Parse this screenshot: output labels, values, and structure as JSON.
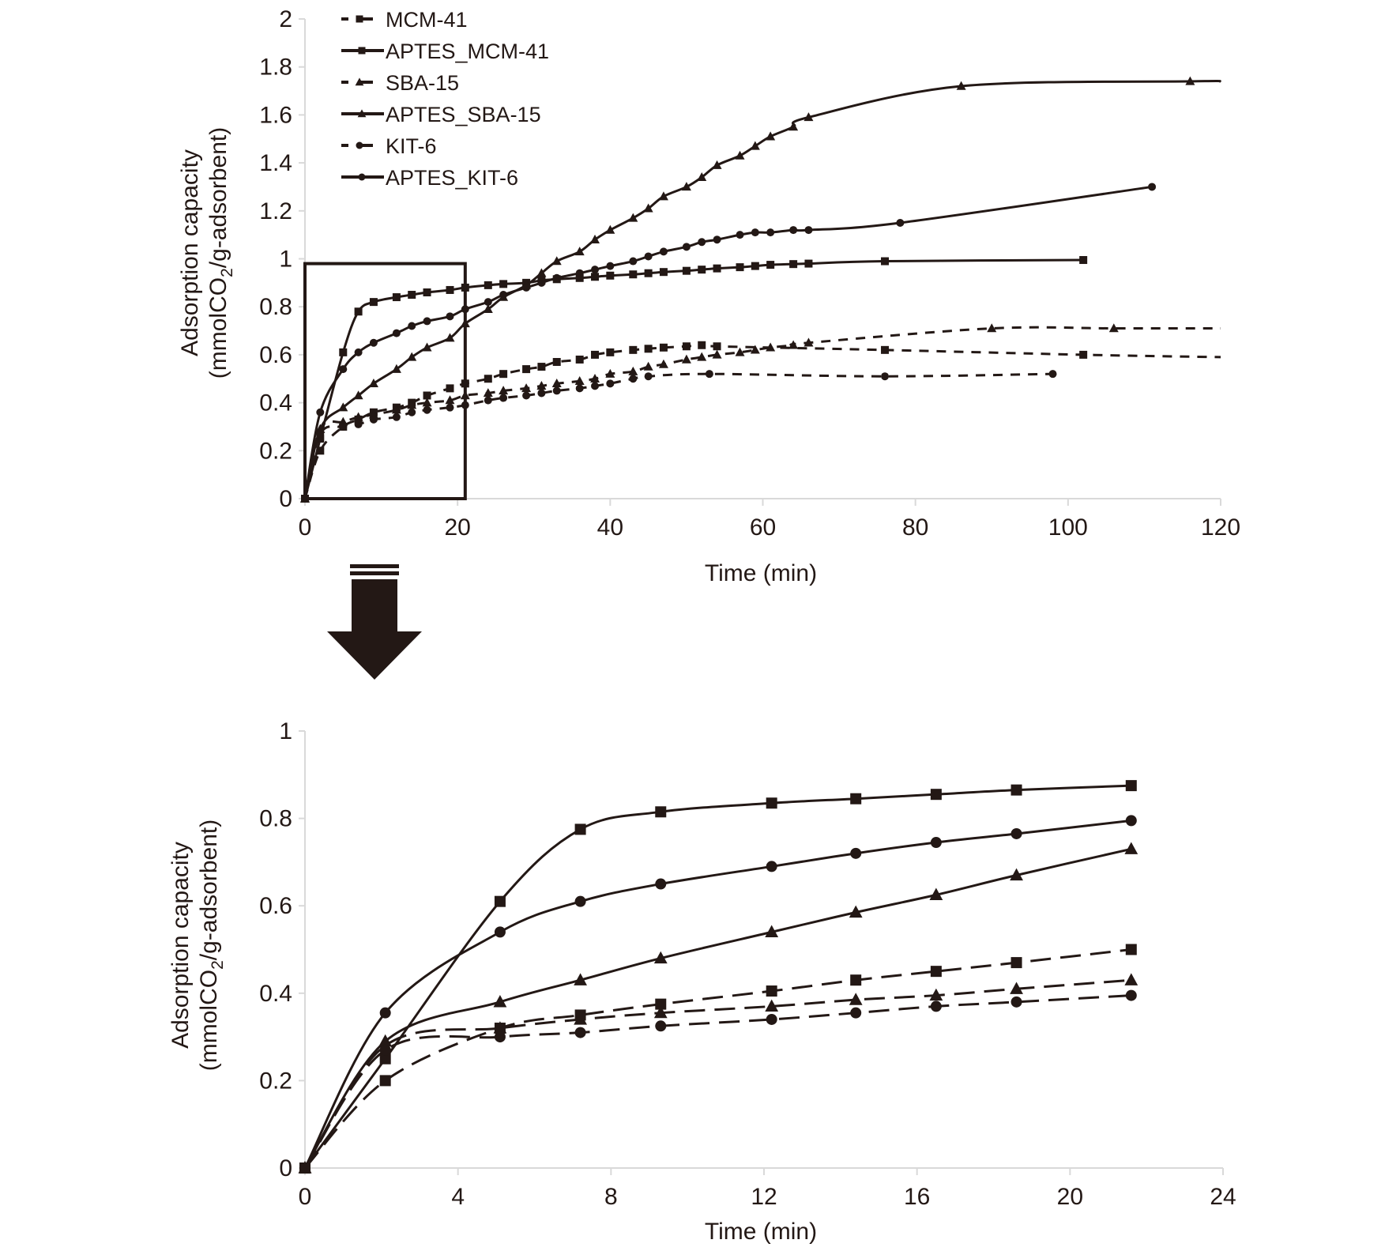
{
  "chart_data": [
    {
      "id": "top",
      "type": "line",
      "title": "",
      "xlabel": "Time (min)",
      "ylabel_line1": "Adsorption capacity",
      "ylabel_line2_prefix": "(mmolCO",
      "ylabel_line2_sub": "2",
      "ylabel_line2_suffix": "/g-adsorbent)",
      "xlim": [
        0,
        120
      ],
      "ylim": [
        0,
        2
      ],
      "xticks": [
        0,
        20,
        40,
        60,
        80,
        100,
        120
      ],
      "yticks": [
        0,
        0.2,
        0.4,
        0.6,
        0.8,
        1,
        1.2,
        1.4,
        1.6,
        1.8,
        2
      ],
      "ytick_labels": [
        "0",
        "0.2",
        "0.4",
        "0.6",
        "0.8",
        "1",
        "1.2",
        "1.4",
        "1.6",
        "1.8",
        "2"
      ],
      "grid": false,
      "legend_position": "top-left",
      "zoom_box": {
        "x": [
          0,
          21
        ],
        "y": [
          0,
          0.98
        ]
      },
      "series": [
        {
          "name": "MCM-41",
          "style": "dashed",
          "marker": "square",
          "x": [
            0,
            2,
            5,
            7,
            9,
            12,
            14,
            16,
            19,
            21,
            24,
            26,
            29,
            31,
            33,
            36,
            38,
            40,
            43,
            45,
            47,
            50,
            52,
            54,
            76,
            102,
            120
          ],
          "y": [
            0,
            0.2,
            0.3,
            0.33,
            0.36,
            0.38,
            0.4,
            0.43,
            0.46,
            0.48,
            0.5,
            0.52,
            0.54,
            0.55,
            0.57,
            0.58,
            0.6,
            0.61,
            0.62,
            0.625,
            0.63,
            0.635,
            0.64,
            0.635,
            0.62,
            0.6,
            0.59
          ],
          "markers_at": [
            0,
            2,
            5,
            7,
            9,
            12,
            14,
            16,
            19,
            21,
            24,
            26,
            29,
            31,
            33,
            36,
            38,
            40,
            43,
            45,
            47,
            50,
            52,
            54,
            76,
            102
          ]
        },
        {
          "name": "APTES_MCM-41",
          "style": "solid",
          "marker": "square",
          "x": [
            0,
            2,
            5,
            7,
            9,
            12,
            14,
            16,
            19,
            21,
            24,
            26,
            29,
            31,
            33,
            36,
            38,
            40,
            43,
            45,
            47,
            50,
            52,
            54,
            57,
            59,
            61,
            64,
            66,
            76,
            102
          ],
          "y": [
            0,
            0.25,
            0.61,
            0.78,
            0.82,
            0.84,
            0.85,
            0.86,
            0.87,
            0.88,
            0.89,
            0.895,
            0.9,
            0.91,
            0.915,
            0.92,
            0.925,
            0.93,
            0.935,
            0.94,
            0.945,
            0.95,
            0.955,
            0.96,
            0.965,
            0.97,
            0.975,
            0.978,
            0.98,
            0.99,
            0.995
          ]
        },
        {
          "name": "SBA-15",
          "style": "dashed",
          "marker": "triangle",
          "x": [
            0,
            2,
            5,
            7,
            9,
            12,
            14,
            16,
            19,
            21,
            24,
            26,
            29,
            31,
            33,
            36,
            38,
            40,
            43,
            45,
            47,
            50,
            52,
            54,
            57,
            59,
            61,
            64,
            66,
            90,
            106,
            120
          ],
          "y": [
            0,
            0.29,
            0.32,
            0.34,
            0.35,
            0.37,
            0.39,
            0.4,
            0.41,
            0.43,
            0.44,
            0.45,
            0.46,
            0.47,
            0.48,
            0.49,
            0.5,
            0.52,
            0.53,
            0.55,
            0.56,
            0.58,
            0.59,
            0.6,
            0.61,
            0.62,
            0.63,
            0.64,
            0.65,
            0.71,
            0.71,
            0.71
          ]
        },
        {
          "name": "APTES_SBA-15",
          "style": "solid",
          "marker": "triangle",
          "x": [
            0,
            2,
            5,
            7,
            9,
            12,
            14,
            16,
            19,
            21,
            24,
            26,
            29,
            31,
            33,
            36,
            38,
            40,
            43,
            45,
            47,
            50,
            52,
            54,
            57,
            59,
            61,
            64,
            66,
            86,
            116,
            120
          ],
          "y": [
            0,
            0.29,
            0.38,
            0.43,
            0.48,
            0.54,
            0.59,
            0.63,
            0.67,
            0.73,
            0.79,
            0.84,
            0.89,
            0.94,
            0.99,
            1.03,
            1.08,
            1.12,
            1.17,
            1.21,
            1.26,
            1.3,
            1.34,
            1.39,
            1.43,
            1.47,
            1.51,
            1.55,
            1.59,
            1.72,
            1.74,
            1.74
          ]
        },
        {
          "name": "KIT-6",
          "style": "dashed",
          "marker": "circle",
          "x": [
            0,
            2,
            5,
            7,
            9,
            12,
            14,
            16,
            19,
            21,
            24,
            26,
            29,
            31,
            33,
            36,
            38,
            40,
            43,
            45,
            53,
            76,
            98
          ],
          "y": [
            0,
            0.27,
            0.3,
            0.31,
            0.33,
            0.34,
            0.36,
            0.37,
            0.38,
            0.39,
            0.41,
            0.42,
            0.43,
            0.44,
            0.45,
            0.46,
            0.47,
            0.48,
            0.5,
            0.51,
            0.52,
            0.51,
            0.52
          ]
        },
        {
          "name": "APTES_KIT-6",
          "style": "solid",
          "marker": "circle",
          "x": [
            0,
            2,
            5,
            7,
            9,
            12,
            14,
            16,
            19,
            21,
            24,
            26,
            29,
            31,
            33,
            36,
            38,
            40,
            43,
            45,
            47,
            50,
            52,
            54,
            57,
            59,
            61,
            64,
            66,
            78,
            111
          ],
          "y": [
            0,
            0.36,
            0.54,
            0.61,
            0.65,
            0.69,
            0.72,
            0.74,
            0.76,
            0.79,
            0.82,
            0.85,
            0.88,
            0.9,
            0.92,
            0.94,
            0.955,
            0.97,
            0.99,
            1.01,
            1.03,
            1.05,
            1.07,
            1.08,
            1.1,
            1.11,
            1.11,
            1.12,
            1.12,
            1.15,
            1.3
          ]
        }
      ]
    },
    {
      "id": "bottom",
      "type": "line",
      "title": "",
      "xlabel": "Time (min)",
      "ylabel_line1": "Adsorption capacity",
      "ylabel_line2_prefix": "(mmolCO",
      "ylabel_line2_sub": "2",
      "ylabel_line2_suffix": "/g-adsorbent)",
      "xlim": [
        0,
        24
      ],
      "ylim": [
        0,
        1
      ],
      "xticks": [
        0,
        4,
        8,
        12,
        16,
        20,
        24
      ],
      "yticks": [
        0,
        0.2,
        0.4,
        0.6,
        0.8,
        1
      ],
      "ytick_labels": [
        "0",
        "0.2",
        "0.4",
        "0.6",
        "0.8",
        "1"
      ],
      "grid": false,
      "series": [
        {
          "name": "MCM-41",
          "style": "dashed",
          "marker": "square",
          "x": [
            0,
            2.1,
            5.1,
            7.2,
            9.3,
            12.2,
            14.4,
            16.5,
            18.6,
            21.6
          ],
          "y": [
            0,
            0.2,
            0.32,
            0.35,
            0.375,
            0.405,
            0.43,
            0.45,
            0.47,
            0.5
          ]
        },
        {
          "name": "APTES_MCM-41",
          "style": "solid",
          "marker": "square",
          "x": [
            0,
            2.1,
            5.1,
            7.2,
            9.3,
            12.2,
            14.4,
            16.5,
            18.6,
            21.6
          ],
          "y": [
            0,
            0.25,
            0.61,
            0.775,
            0.815,
            0.835,
            0.845,
            0.855,
            0.865,
            0.875
          ]
        },
        {
          "name": "SBA-15",
          "style": "dashed",
          "marker": "triangle",
          "x": [
            0,
            2.1,
            5.1,
            7.2,
            9.3,
            12.2,
            14.4,
            16.5,
            18.6,
            21.6
          ],
          "y": [
            0,
            0.28,
            0.32,
            0.34,
            0.355,
            0.37,
            0.385,
            0.395,
            0.41,
            0.43
          ]
        },
        {
          "name": "APTES_SBA-15",
          "style": "solid",
          "marker": "triangle",
          "x": [
            0,
            2.1,
            5.1,
            7.2,
            9.3,
            12.2,
            14.4,
            16.5,
            18.6,
            21.6
          ],
          "y": [
            0,
            0.29,
            0.38,
            0.43,
            0.48,
            0.54,
            0.585,
            0.625,
            0.67,
            0.73
          ]
        },
        {
          "name": "KIT-6",
          "style": "dashed",
          "marker": "circle",
          "x": [
            0,
            2.1,
            5.1,
            7.2,
            9.3,
            12.2,
            14.4,
            16.5,
            18.6,
            21.6
          ],
          "y": [
            0,
            0.27,
            0.3,
            0.31,
            0.325,
            0.34,
            0.355,
            0.37,
            0.38,
            0.395
          ]
        },
        {
          "name": "APTES_KIT-6",
          "style": "solid",
          "marker": "circle",
          "x": [
            0,
            2.1,
            5.1,
            7.2,
            9.3,
            12.2,
            14.4,
            16.5,
            18.6,
            21.6
          ],
          "y": [
            0,
            0.355,
            0.54,
            0.61,
            0.65,
            0.69,
            0.72,
            0.745,
            0.765,
            0.795
          ]
        }
      ]
    }
  ],
  "legend": {
    "entries": [
      {
        "label": "MCM-41",
        "style": "dashed",
        "marker": "square"
      },
      {
        "label": "APTES_MCM-41",
        "style": "solid",
        "marker": "square"
      },
      {
        "label": "SBA-15",
        "style": "dashed",
        "marker": "triangle"
      },
      {
        "label": "APTES_SBA-15",
        "style": "solid",
        "marker": "triangle"
      },
      {
        "label": "KIT-6",
        "style": "dashed",
        "marker": "circle"
      },
      {
        "label": "APTES_KIT-6",
        "style": "solid",
        "marker": "circle"
      }
    ]
  },
  "annotations": {
    "zoom_arrow": "down-arrow-icon"
  },
  "colors": {
    "ink": "#231815",
    "axis": "#d9d9d9"
  }
}
